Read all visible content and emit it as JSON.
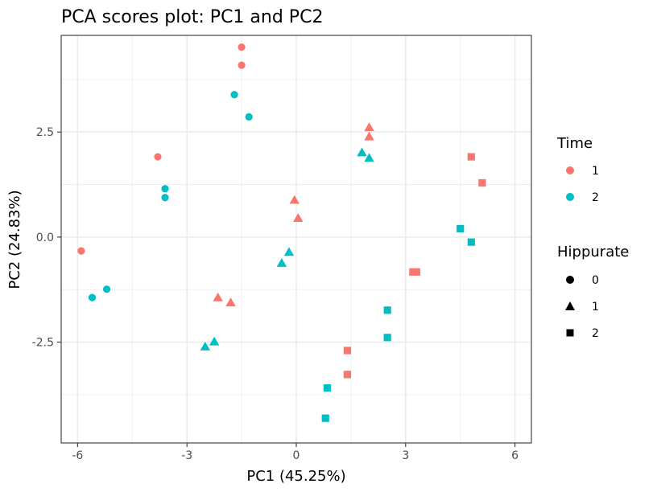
{
  "chart_data": {
    "type": "scatter",
    "title": "PCA scores plot: PC1 and PC2",
    "xlabel": "PC1 (45.25%)",
    "ylabel": "PC2 (24.83%)",
    "xlim": [
      -6.45,
      6.45
    ],
    "ylim": [
      -4.9,
      4.8
    ],
    "xticks": [
      -6,
      -3,
      0,
      3,
      6
    ],
    "xtick_labels": [
      "-6",
      "-3",
      "0",
      "3",
      "6"
    ],
    "yticks": [
      -2.5,
      0,
      2.5
    ],
    "ytick_labels": [
      "-2.5",
      "0.0",
      "2.5"
    ],
    "x_minor_ticks": [
      -4.5,
      -1.5,
      1.5,
      4.5
    ],
    "y_minor_ticks": [
      -3.75,
      -1.25,
      1.25,
      3.75
    ],
    "grid": true,
    "legend_position": "right",
    "color_legend": {
      "title": "Time",
      "entries": [
        {
          "label": "1",
          "color": "#F8766D"
        },
        {
          "label": "2",
          "color": "#00BFC4"
        }
      ]
    },
    "shape_legend": {
      "title": "Hippurate",
      "entries": [
        {
          "label": "0",
          "shape": "circle"
        },
        {
          "label": "1",
          "shape": "triangle"
        },
        {
          "label": "2",
          "shape": "square"
        }
      ]
    },
    "points": [
      {
        "x": -1.5,
        "y": 4.52,
        "time": "1",
        "hippurate": "0"
      },
      {
        "x": -1.5,
        "y": 4.09,
        "time": "1",
        "hippurate": "0"
      },
      {
        "x": -1.7,
        "y": 3.39,
        "time": "2",
        "hippurate": "0"
      },
      {
        "x": -1.3,
        "y": 2.86,
        "time": "2",
        "hippurate": "0"
      },
      {
        "x": -3.8,
        "y": 1.91,
        "time": "1",
        "hippurate": "0"
      },
      {
        "x": -3.6,
        "y": 1.15,
        "time": "2",
        "hippurate": "0"
      },
      {
        "x": -3.6,
        "y": 0.94,
        "time": "2",
        "hippurate": "0"
      },
      {
        "x": -5.9,
        "y": -0.33,
        "time": "1",
        "hippurate": "0"
      },
      {
        "x": -5.6,
        "y": -1.44,
        "time": "2",
        "hippurate": "0"
      },
      {
        "x": -5.2,
        "y": -1.24,
        "time": "2",
        "hippurate": "0"
      },
      {
        "x": 2.0,
        "y": 2.61,
        "time": "1",
        "hippurate": "1"
      },
      {
        "x": 2.0,
        "y": 2.39,
        "time": "1",
        "hippurate": "1"
      },
      {
        "x": 1.8,
        "y": 2.01,
        "time": "2",
        "hippurate": "1"
      },
      {
        "x": 2.0,
        "y": 1.88,
        "time": "2",
        "hippurate": "1"
      },
      {
        "x": -0.05,
        "y": 0.88,
        "time": "1",
        "hippurate": "1"
      },
      {
        "x": 0.05,
        "y": 0.45,
        "time": "1",
        "hippurate": "1"
      },
      {
        "x": -0.2,
        "y": -0.36,
        "time": "2",
        "hippurate": "1"
      },
      {
        "x": -0.4,
        "y": -0.62,
        "time": "2",
        "hippurate": "1"
      },
      {
        "x": -2.15,
        "y": -1.44,
        "time": "1",
        "hippurate": "1"
      },
      {
        "x": -1.8,
        "y": -1.56,
        "time": "1",
        "hippurate": "1"
      },
      {
        "x": -2.25,
        "y": -2.49,
        "time": "2",
        "hippurate": "1"
      },
      {
        "x": -2.5,
        "y": -2.61,
        "time": "2",
        "hippurate": "1"
      },
      {
        "x": 4.8,
        "y": 1.91,
        "time": "1",
        "hippurate": "2"
      },
      {
        "x": 5.1,
        "y": 1.29,
        "time": "1",
        "hippurate": "2"
      },
      {
        "x": 4.5,
        "y": 0.2,
        "time": "2",
        "hippurate": "2"
      },
      {
        "x": 4.8,
        "y": -0.12,
        "time": "2",
        "hippurate": "2"
      },
      {
        "x": 3.2,
        "y": -0.83,
        "time": "1",
        "hippurate": "2"
      },
      {
        "x": 3.3,
        "y": -0.83,
        "time": "1",
        "hippurate": "2"
      },
      {
        "x": 2.5,
        "y": -1.74,
        "time": "2",
        "hippurate": "2"
      },
      {
        "x": 2.5,
        "y": -2.39,
        "time": "2",
        "hippurate": "2"
      },
      {
        "x": 1.4,
        "y": -2.7,
        "time": "1",
        "hippurate": "2"
      },
      {
        "x": 1.4,
        "y": -3.27,
        "time": "1",
        "hippurate": "2"
      },
      {
        "x": 0.85,
        "y": -3.59,
        "time": "2",
        "hippurate": "2"
      },
      {
        "x": 0.8,
        "y": -4.31,
        "time": "2",
        "hippurate": "2"
      }
    ]
  }
}
